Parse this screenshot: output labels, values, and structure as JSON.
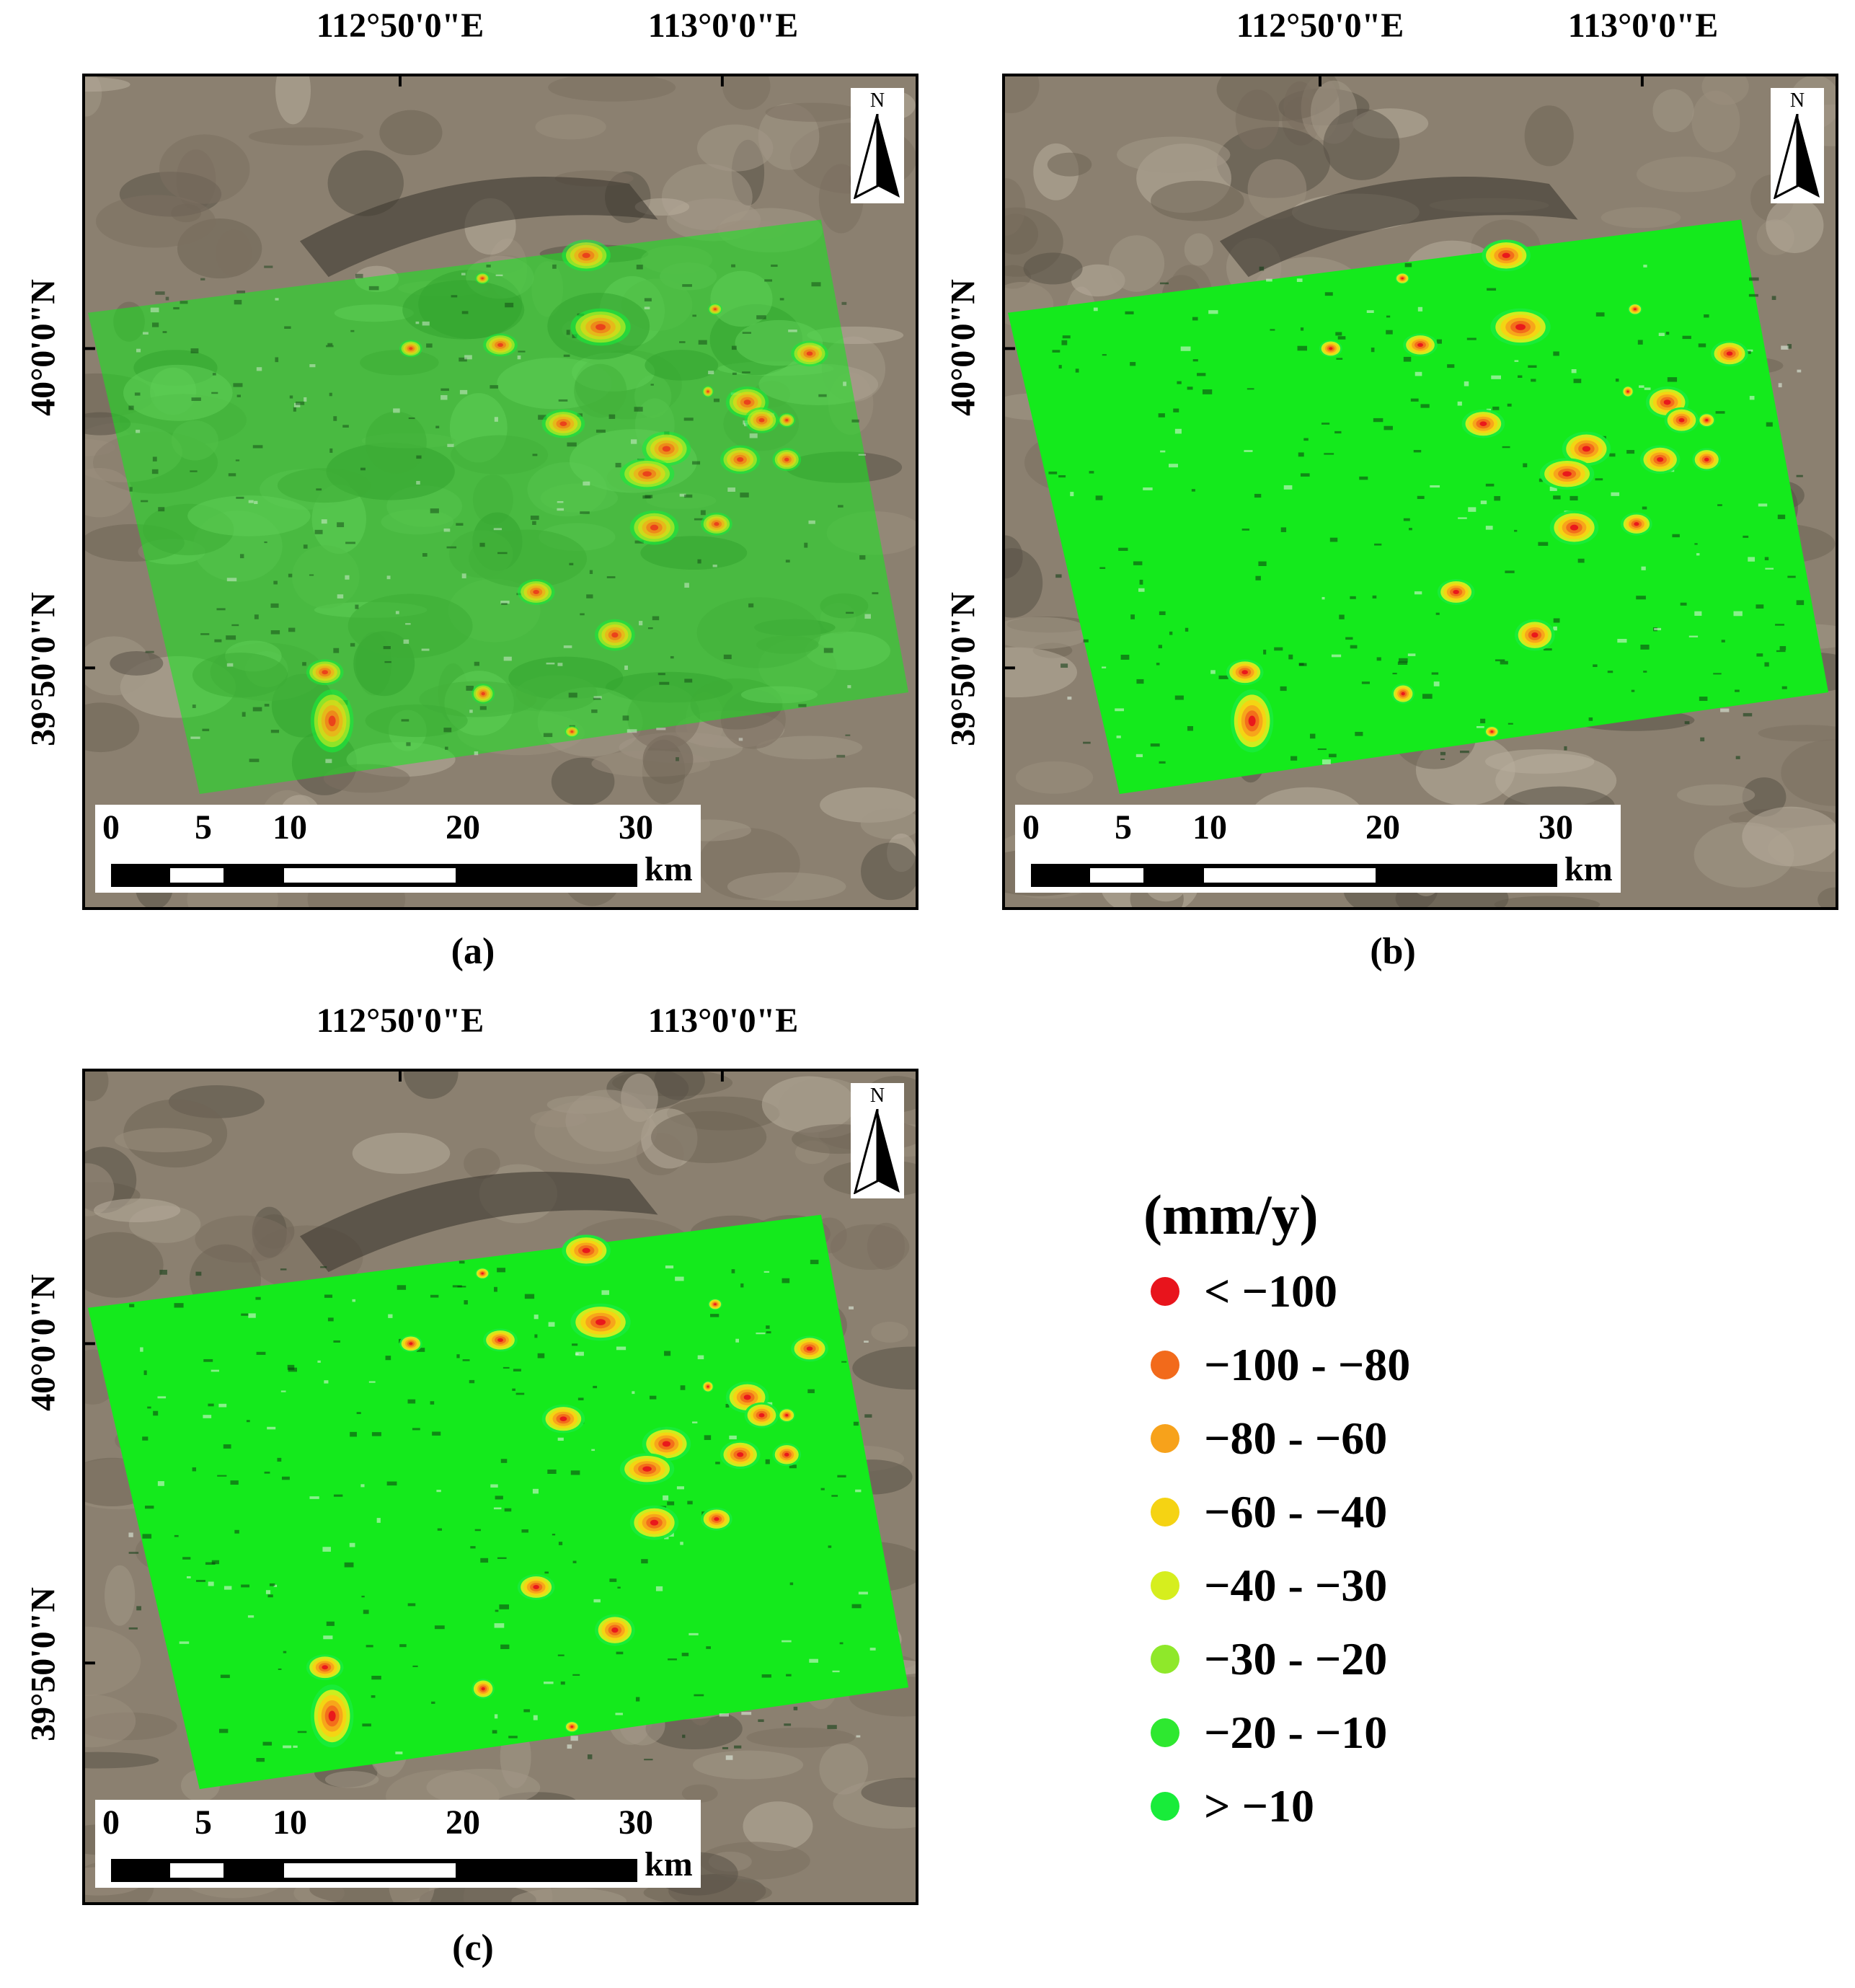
{
  "panels": [
    {
      "id": "a",
      "caption": "(a)",
      "overlay": "semi"
    },
    {
      "id": "b",
      "caption": "(b)",
      "overlay": "solid"
    },
    {
      "id": "c",
      "caption": "(c)",
      "overlay": "solid"
    }
  ],
  "graticule": {
    "lon_labels": [
      "112°50'0\"E",
      "113°0'0\"E"
    ],
    "lat_labels": [
      "40°0'0\"N",
      "39°50'0\"N"
    ]
  },
  "north_arrow": {
    "label": "N",
    "icon": "north-arrow-icon"
  },
  "scale_bar": {
    "ticks": [
      "0",
      "5",
      "10",
      "20",
      "30"
    ],
    "unit": "km"
  },
  "legend": {
    "title": "(mm/y)",
    "items": [
      {
        "label": "< −100",
        "color": "#e8141c"
      },
      {
        "label": "−100 - −80",
        "color": "#f26a1b"
      },
      {
        "label": "−80 - −60",
        "color": "#f7a21b"
      },
      {
        "label": "−60 - −40",
        "color": "#f5d313"
      },
      {
        "label": "−40 - −30",
        "color": "#d6ee1e"
      },
      {
        "label": "−30 - −20",
        "color": "#8fe82a"
      },
      {
        "label": "−20 - −10",
        "color": "#2ee830"
      },
      {
        "label": "> −10",
        "color": "#18ec3a"
      }
    ]
  },
  "colors": {
    "deformation_background": "#14ea1c",
    "terrain": "#8e8273"
  }
}
